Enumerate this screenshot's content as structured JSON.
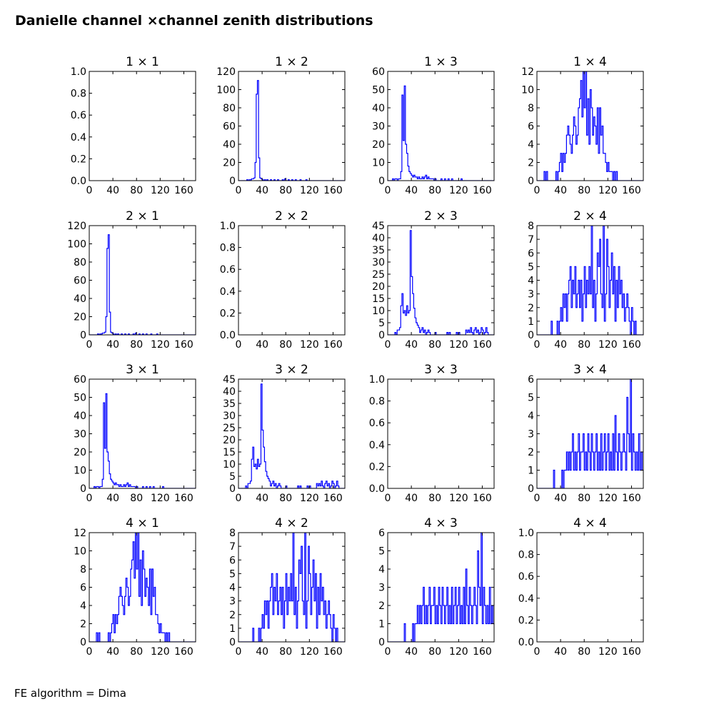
{
  "page": {
    "title": "Danielle channel ×channel zenith distributions",
    "footer": "FE algorithm = Dima"
  },
  "colors": {
    "line": "#0000ff",
    "axes": "#000000",
    "background": "#ffffff"
  },
  "x_ticks": [
    0,
    40,
    80,
    120,
    160
  ],
  "chart_data": [
    {
      "type": "histogram",
      "title": "1  × 1",
      "xlim": [
        0,
        180
      ],
      "ylim": [
        0,
        1.0
      ],
      "yticks": [
        0.0,
        0.2,
        0.4,
        0.6,
        0.8,
        1.0
      ],
      "ytick_labels": [
        "0.0",
        "0.2",
        "0.4",
        "0.6",
        "0.8",
        "1.0"
      ],
      "bin_width": 2,
      "values": []
    },
    {
      "type": "histogram",
      "title": "1  × 2",
      "xlim": [
        0,
        180
      ],
      "ylim": [
        0,
        120
      ],
      "yticks": [
        0,
        20,
        40,
        60,
        80,
        100,
        120
      ],
      "ytick_labels": [
        "0",
        "20",
        "40",
        "60",
        "80",
        "100",
        "120"
      ],
      "bin_width": 2,
      "values": [
        0,
        0,
        0,
        0,
        0,
        0,
        0,
        1,
        0,
        1,
        1,
        2,
        2,
        3,
        20,
        95,
        110,
        25,
        3,
        2,
        1,
        0,
        1,
        0,
        1,
        0,
        0,
        1,
        0,
        0,
        1,
        0,
        0,
        1,
        0,
        0,
        0,
        1,
        0,
        2,
        0,
        0,
        1,
        0,
        0,
        1,
        0,
        0,
        1,
        0,
        0,
        0,
        1,
        0,
        0,
        0,
        0,
        1,
        0,
        0,
        0,
        0,
        0,
        0,
        0,
        0,
        0,
        0,
        0,
        0,
        0,
        0,
        0,
        0,
        0,
        0,
        0,
        0,
        0,
        0,
        0,
        0,
        0,
        0,
        0,
        0,
        0,
        0,
        0,
        0
      ]
    },
    {
      "type": "histogram",
      "title": "1  × 3",
      "xlim": [
        0,
        180
      ],
      "ylim": [
        0,
        60
      ],
      "yticks": [
        0,
        10,
        20,
        30,
        40,
        50,
        60
      ],
      "ytick_labels": [
        "0",
        "10",
        "20",
        "30",
        "40",
        "50",
        "60"
      ],
      "bin_width": 2,
      "values": [
        0,
        0,
        0,
        0,
        1,
        0,
        1,
        1,
        0,
        1,
        1,
        5,
        47,
        22,
        52,
        20,
        15,
        8,
        5,
        4,
        3,
        2,
        3,
        2,
        2,
        1,
        2,
        1,
        1,
        2,
        1,
        2,
        3,
        1,
        2,
        1,
        1,
        1,
        1,
        0,
        1,
        0,
        0,
        0,
        0,
        1,
        0,
        0,
        1,
        0,
        0,
        1,
        0,
        0,
        1,
        0,
        0,
        0,
        0,
        0,
        0,
        0,
        1,
        0,
        0,
        0,
        0,
        0,
        0,
        0,
        0,
        0,
        0,
        0,
        0,
        0,
        0,
        0,
        0,
        0,
        0,
        0,
        0,
        0,
        0,
        0,
        0,
        0,
        0,
        0
      ]
    },
    {
      "type": "histogram",
      "title": "1  × 4",
      "xlim": [
        0,
        180
      ],
      "ylim": [
        0,
        12
      ],
      "yticks": [
        0,
        2,
        4,
        6,
        8,
        10,
        12
      ],
      "ytick_labels": [
        "0",
        "2",
        "4",
        "6",
        "8",
        "10",
        "12"
      ],
      "bin_width": 2,
      "values": [
        0,
        0,
        0,
        0,
        0,
        0,
        1,
        0,
        1,
        0,
        0,
        0,
        0,
        0,
        0,
        0,
        1,
        0,
        1,
        2,
        3,
        1,
        3,
        2,
        3,
        5,
        6,
        5,
        4,
        3,
        5,
        7,
        6,
        4,
        5,
        8,
        9,
        11,
        7,
        12,
        8,
        12,
        5,
        9,
        4,
        10,
        8,
        5,
        7,
        6,
        4,
        8,
        3,
        8,
        5,
        6,
        3,
        3,
        2,
        1,
        2,
        1,
        1,
        1,
        0,
        1,
        0,
        1,
        0,
        0,
        0,
        0,
        0,
        0,
        0,
        0,
        0,
        0,
        0,
        0,
        0,
        0,
        0,
        0,
        0,
        0,
        0,
        0,
        0,
        0
      ]
    },
    {
      "type": "histogram",
      "title": "2  × 1",
      "xlim": [
        0,
        180
      ],
      "ylim": [
        0,
        120
      ],
      "yticks": [
        0,
        20,
        40,
        60,
        80,
        100,
        120
      ],
      "ytick_labels": [
        "0",
        "20",
        "40",
        "60",
        "80",
        "100",
        "120"
      ],
      "bin_width": 2,
      "values": [
        0,
        0,
        0,
        0,
        0,
        0,
        0,
        1,
        0,
        1,
        1,
        2,
        2,
        3,
        20,
        95,
        110,
        25,
        3,
        2,
        1,
        0,
        1,
        0,
        1,
        0,
        0,
        1,
        0,
        0,
        1,
        0,
        0,
        1,
        0,
        0,
        0,
        1,
        0,
        2,
        0,
        0,
        1,
        0,
        0,
        1,
        0,
        0,
        1,
        0,
        0,
        0,
        1,
        0,
        0,
        0,
        0,
        1,
        0,
        0,
        0,
        0,
        0,
        0,
        0,
        0,
        0,
        0,
        0,
        0,
        0,
        0,
        0,
        0,
        0,
        0,
        0,
        0,
        0,
        0,
        0,
        0,
        0,
        0,
        0,
        0,
        0,
        0,
        0,
        0
      ]
    },
    {
      "type": "histogram",
      "title": "2  × 2",
      "xlim": [
        0,
        180
      ],
      "ylim": [
        0,
        1.0
      ],
      "yticks": [
        0.0,
        0.2,
        0.4,
        0.6,
        0.8,
        1.0
      ],
      "ytick_labels": [
        "0.0",
        "0.2",
        "0.4",
        "0.6",
        "0.8",
        "1.0"
      ],
      "bin_width": 2,
      "values": []
    },
    {
      "type": "histogram",
      "title": "2  × 3",
      "xlim": [
        0,
        180
      ],
      "ylim": [
        0,
        45
      ],
      "yticks": [
        0,
        5,
        10,
        15,
        20,
        25,
        30,
        35,
        40,
        45
      ],
      "ytick_labels": [
        "0",
        "5",
        "10",
        "15",
        "20",
        "25",
        "30",
        "35",
        "40",
        "45"
      ],
      "bin_width": 2,
      "values": [
        0,
        0,
        0,
        0,
        0,
        0,
        1,
        0,
        2,
        2,
        3,
        12,
        17,
        9,
        10,
        8,
        12,
        9,
        10,
        43,
        24,
        17,
        11,
        7,
        5,
        4,
        3,
        1,
        2,
        3,
        1,
        2,
        0,
        1,
        2,
        1,
        0,
        0,
        0,
        0,
        1,
        0,
        0,
        0,
        0,
        0,
        0,
        0,
        0,
        0,
        1,
        0,
        1,
        0,
        0,
        0,
        0,
        0,
        1,
        0,
        1,
        0,
        0,
        0,
        0,
        0,
        2,
        1,
        2,
        1,
        3,
        1,
        0,
        2,
        3,
        1,
        2,
        0,
        1,
        3,
        2,
        0,
        1,
        3,
        1,
        0,
        0,
        0,
        0,
        0
      ]
    },
    {
      "type": "histogram",
      "title": "2  × 4",
      "xlim": [
        0,
        180
      ],
      "ylim": [
        0,
        8
      ],
      "yticks": [
        0,
        1,
        2,
        3,
        4,
        5,
        6,
        7,
        8
      ],
      "ytick_labels": [
        "0",
        "1",
        "2",
        "3",
        "4",
        "5",
        "6",
        "7",
        "8"
      ],
      "bin_width": 2,
      "values": [
        0,
        0,
        0,
        0,
        0,
        0,
        0,
        0,
        0,
        0,
        0,
        0,
        1,
        0,
        0,
        0,
        0,
        1,
        0,
        1,
        2,
        1,
        3,
        2,
        3,
        1,
        3,
        4,
        5,
        2,
        4,
        3,
        5,
        2,
        3,
        4,
        2,
        4,
        1,
        3,
        5,
        2,
        4,
        3,
        5,
        3,
        8,
        2,
        4,
        1,
        3,
        6,
        5,
        7,
        3,
        2,
        8,
        1,
        3,
        7,
        5,
        2,
        4,
        6,
        3,
        5,
        1,
        4,
        2,
        5,
        3,
        4,
        2,
        3,
        1,
        2,
        3,
        2,
        1,
        0,
        2,
        1,
        0,
        1,
        0,
        0,
        0,
        0,
        0,
        0
      ]
    },
    {
      "type": "histogram",
      "title": "3  × 1",
      "xlim": [
        0,
        180
      ],
      "ylim": [
        0,
        60
      ],
      "yticks": [
        0,
        10,
        20,
        30,
        40,
        50,
        60
      ],
      "ytick_labels": [
        "0",
        "10",
        "20",
        "30",
        "40",
        "50",
        "60"
      ],
      "bin_width": 2,
      "values": [
        0,
        0,
        0,
        0,
        1,
        0,
        1,
        1,
        0,
        1,
        1,
        5,
        47,
        22,
        52,
        20,
        15,
        8,
        5,
        4,
        3,
        2,
        3,
        2,
        2,
        1,
        2,
        1,
        1,
        2,
        1,
        2,
        3,
        1,
        2,
        1,
        1,
        1,
        1,
        0,
        1,
        0,
        0,
        0,
        0,
        1,
        0,
        0,
        1,
        0,
        0,
        1,
        0,
        0,
        1,
        0,
        0,
        0,
        0,
        0,
        0,
        0,
        1,
        0,
        0,
        0,
        0,
        0,
        0,
        0,
        0,
        0,
        0,
        0,
        0,
        0,
        0,
        0,
        0,
        0,
        0,
        0,
        0,
        0,
        0,
        0,
        0,
        0,
        0,
        0
      ]
    },
    {
      "type": "histogram",
      "title": "3  × 2",
      "xlim": [
        0,
        180
      ],
      "ylim": [
        0,
        45
      ],
      "yticks": [
        0,
        5,
        10,
        15,
        20,
        25,
        30,
        35,
        40,
        45
      ],
      "ytick_labels": [
        "0",
        "5",
        "10",
        "15",
        "20",
        "25",
        "30",
        "35",
        "40",
        "45"
      ],
      "bin_width": 2,
      "values": [
        0,
        0,
        0,
        0,
        0,
        0,
        1,
        0,
        2,
        2,
        3,
        12,
        17,
        9,
        10,
        8,
        12,
        9,
        10,
        43,
        24,
        17,
        11,
        7,
        5,
        4,
        3,
        1,
        2,
        3,
        1,
        2,
        0,
        1,
        2,
        1,
        0,
        0,
        0,
        0,
        1,
        0,
        0,
        0,
        0,
        0,
        0,
        0,
        0,
        0,
        1,
        0,
        1,
        0,
        0,
        0,
        0,
        0,
        1,
        0,
        1,
        0,
        0,
        0,
        0,
        0,
        2,
        1,
        2,
        1,
        3,
        1,
        0,
        2,
        3,
        1,
        2,
        0,
        1,
        3,
        2,
        0,
        1,
        3,
        1,
        0,
        0,
        0,
        0,
        0
      ]
    },
    {
      "type": "histogram",
      "title": "3  × 3",
      "xlim": [
        0,
        180
      ],
      "ylim": [
        0,
        1.0
      ],
      "yticks": [
        0.0,
        0.2,
        0.4,
        0.6,
        0.8,
        1.0
      ],
      "ytick_labels": [
        "0.0",
        "0.2",
        "0.4",
        "0.6",
        "0.8",
        "1.0"
      ],
      "bin_width": 2,
      "values": []
    },
    {
      "type": "histogram",
      "title": "3  × 4",
      "xlim": [
        0,
        180
      ],
      "ylim": [
        0,
        6
      ],
      "yticks": [
        0,
        1,
        2,
        3,
        4,
        5,
        6
      ],
      "ytick_labels": [
        "0",
        "1",
        "2",
        "3",
        "4",
        "5",
        "6"
      ],
      "bin_width": 2,
      "values": [
        0,
        0,
        0,
        0,
        0,
        0,
        0,
        0,
        0,
        0,
        0,
        0,
        0,
        0,
        1,
        0,
        0,
        0,
        0,
        0,
        0,
        1,
        0,
        1,
        1,
        2,
        1,
        2,
        1,
        2,
        3,
        1,
        2,
        1,
        2,
        3,
        1,
        2,
        2,
        3,
        1,
        2,
        1,
        3,
        2,
        1,
        3,
        2,
        1,
        2,
        3,
        1,
        2,
        1,
        3,
        1,
        2,
        3,
        1,
        2,
        3,
        1,
        2,
        1,
        3,
        1,
        4,
        2,
        1,
        3,
        2,
        1,
        2,
        3,
        2,
        1,
        5,
        3,
        2,
        6,
        1,
        3,
        2,
        1,
        2,
        1,
        3,
        1,
        2,
        1
      ]
    },
    {
      "type": "histogram",
      "title": "4  × 1",
      "xlim": [
        0,
        180
      ],
      "ylim": [
        0,
        12
      ],
      "yticks": [
        0,
        2,
        4,
        6,
        8,
        10,
        12
      ],
      "ytick_labels": [
        "0",
        "2",
        "4",
        "6",
        "8",
        "10",
        "12"
      ],
      "bin_width": 2,
      "values": [
        0,
        0,
        0,
        0,
        0,
        0,
        1,
        0,
        1,
        0,
        0,
        0,
        0,
        0,
        0,
        0,
        1,
        0,
        1,
        2,
        3,
        1,
        3,
        2,
        3,
        5,
        6,
        5,
        4,
        3,
        5,
        7,
        6,
        4,
        5,
        8,
        9,
        11,
        7,
        12,
        8,
        12,
        5,
        9,
        4,
        10,
        8,
        5,
        7,
        6,
        4,
        8,
        3,
        8,
        5,
        6,
        3,
        3,
        2,
        1,
        2,
        1,
        1,
        1,
        0,
        1,
        0,
        1,
        0,
        0,
        0,
        0,
        0,
        0,
        0,
        0,
        0,
        0,
        0,
        0,
        0,
        0,
        0,
        0,
        0,
        0,
        0,
        0,
        0,
        0
      ]
    },
    {
      "type": "histogram",
      "title": "4  × 2",
      "xlim": [
        0,
        180
      ],
      "ylim": [
        0,
        8
      ],
      "yticks": [
        0,
        1,
        2,
        3,
        4,
        5,
        6,
        7,
        8
      ],
      "ytick_labels": [
        "0",
        "1",
        "2",
        "3",
        "4",
        "5",
        "6",
        "7",
        "8"
      ],
      "bin_width": 2,
      "values": [
        0,
        0,
        0,
        0,
        0,
        0,
        0,
        0,
        0,
        0,
        0,
        0,
        1,
        0,
        0,
        0,
        0,
        1,
        0,
        1,
        2,
        1,
        3,
        2,
        3,
        1,
        3,
        4,
        5,
        2,
        4,
        3,
        5,
        2,
        3,
        4,
        2,
        4,
        1,
        3,
        5,
        2,
        4,
        3,
        5,
        3,
        8,
        2,
        4,
        1,
        3,
        6,
        5,
        7,
        3,
        2,
        8,
        1,
        3,
        7,
        5,
        2,
        4,
        6,
        3,
        5,
        1,
        4,
        2,
        5,
        3,
        4,
        2,
        3,
        1,
        2,
        3,
        2,
        1,
        0,
        2,
        1,
        0,
        1,
        0,
        0,
        0,
        0,
        0,
        0
      ]
    },
    {
      "type": "histogram",
      "title": "4  × 3",
      "xlim": [
        0,
        180
      ],
      "ylim": [
        0,
        6
      ],
      "yticks": [
        0,
        1,
        2,
        3,
        4,
        5,
        6
      ],
      "ytick_labels": [
        "0",
        "1",
        "2",
        "3",
        "4",
        "5",
        "6"
      ],
      "bin_width": 2,
      "values": [
        0,
        0,
        0,
        0,
        0,
        0,
        0,
        0,
        0,
        0,
        0,
        0,
        0,
        0,
        1,
        0,
        0,
        0,
        0,
        0,
        0,
        1,
        0,
        1,
        1,
        2,
        1,
        2,
        1,
        2,
        3,
        1,
        2,
        1,
        2,
        3,
        1,
        2,
        2,
        3,
        1,
        2,
        1,
        3,
        2,
        1,
        3,
        2,
        1,
        2,
        3,
        1,
        2,
        1,
        3,
        1,
        2,
        3,
        1,
        2,
        3,
        1,
        2,
        1,
        3,
        1,
        4,
        2,
        1,
        3,
        2,
        1,
        2,
        3,
        2,
        1,
        5,
        3,
        2,
        6,
        1,
        3,
        2,
        1,
        2,
        1,
        3,
        1,
        2,
        1
      ]
    },
    {
      "type": "histogram",
      "title": "4  × 4",
      "xlim": [
        0,
        180
      ],
      "ylim": [
        0,
        1.0
      ],
      "yticks": [
        0.0,
        0.2,
        0.4,
        0.6,
        0.8,
        1.0
      ],
      "ytick_labels": [
        "0.0",
        "0.2",
        "0.4",
        "0.6",
        "0.8",
        "1.0"
      ],
      "bin_width": 2,
      "values": []
    }
  ]
}
